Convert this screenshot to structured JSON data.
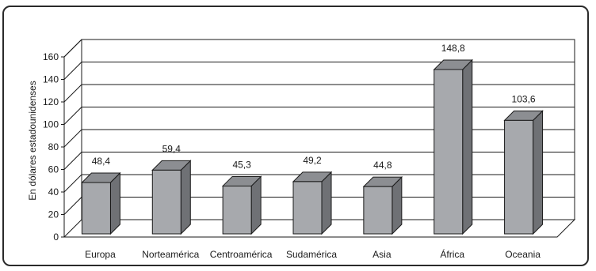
{
  "chart_data": {
    "type": "bar",
    "ylabel": "En dólares estadounidenses",
    "xlabel": "",
    "title": "",
    "ylim": [
      0,
      160
    ],
    "yticks": [
      0,
      20,
      40,
      60,
      80,
      100,
      120,
      140,
      160
    ],
    "categories": [
      "Europa",
      "Norteamérica",
      "Centroamérica",
      "Sudamérica",
      "Asia",
      "África",
      "Oceania"
    ],
    "values": [
      48.4,
      59.4,
      45.3,
      49.2,
      44.8,
      148.8,
      103.6
    ],
    "value_labels": [
      "48,4",
      "59,4",
      "45,3",
      "49,2",
      "44,8",
      "148,8",
      "103,6"
    ],
    "grid": true,
    "style": "3d-bar",
    "colors": {
      "bar_front": "#a7a9ad",
      "bar_side": "#6f7175",
      "bar_top": "#8c8e92",
      "grid": "#1a1a1a",
      "frame": "#2a2a2a"
    }
  }
}
